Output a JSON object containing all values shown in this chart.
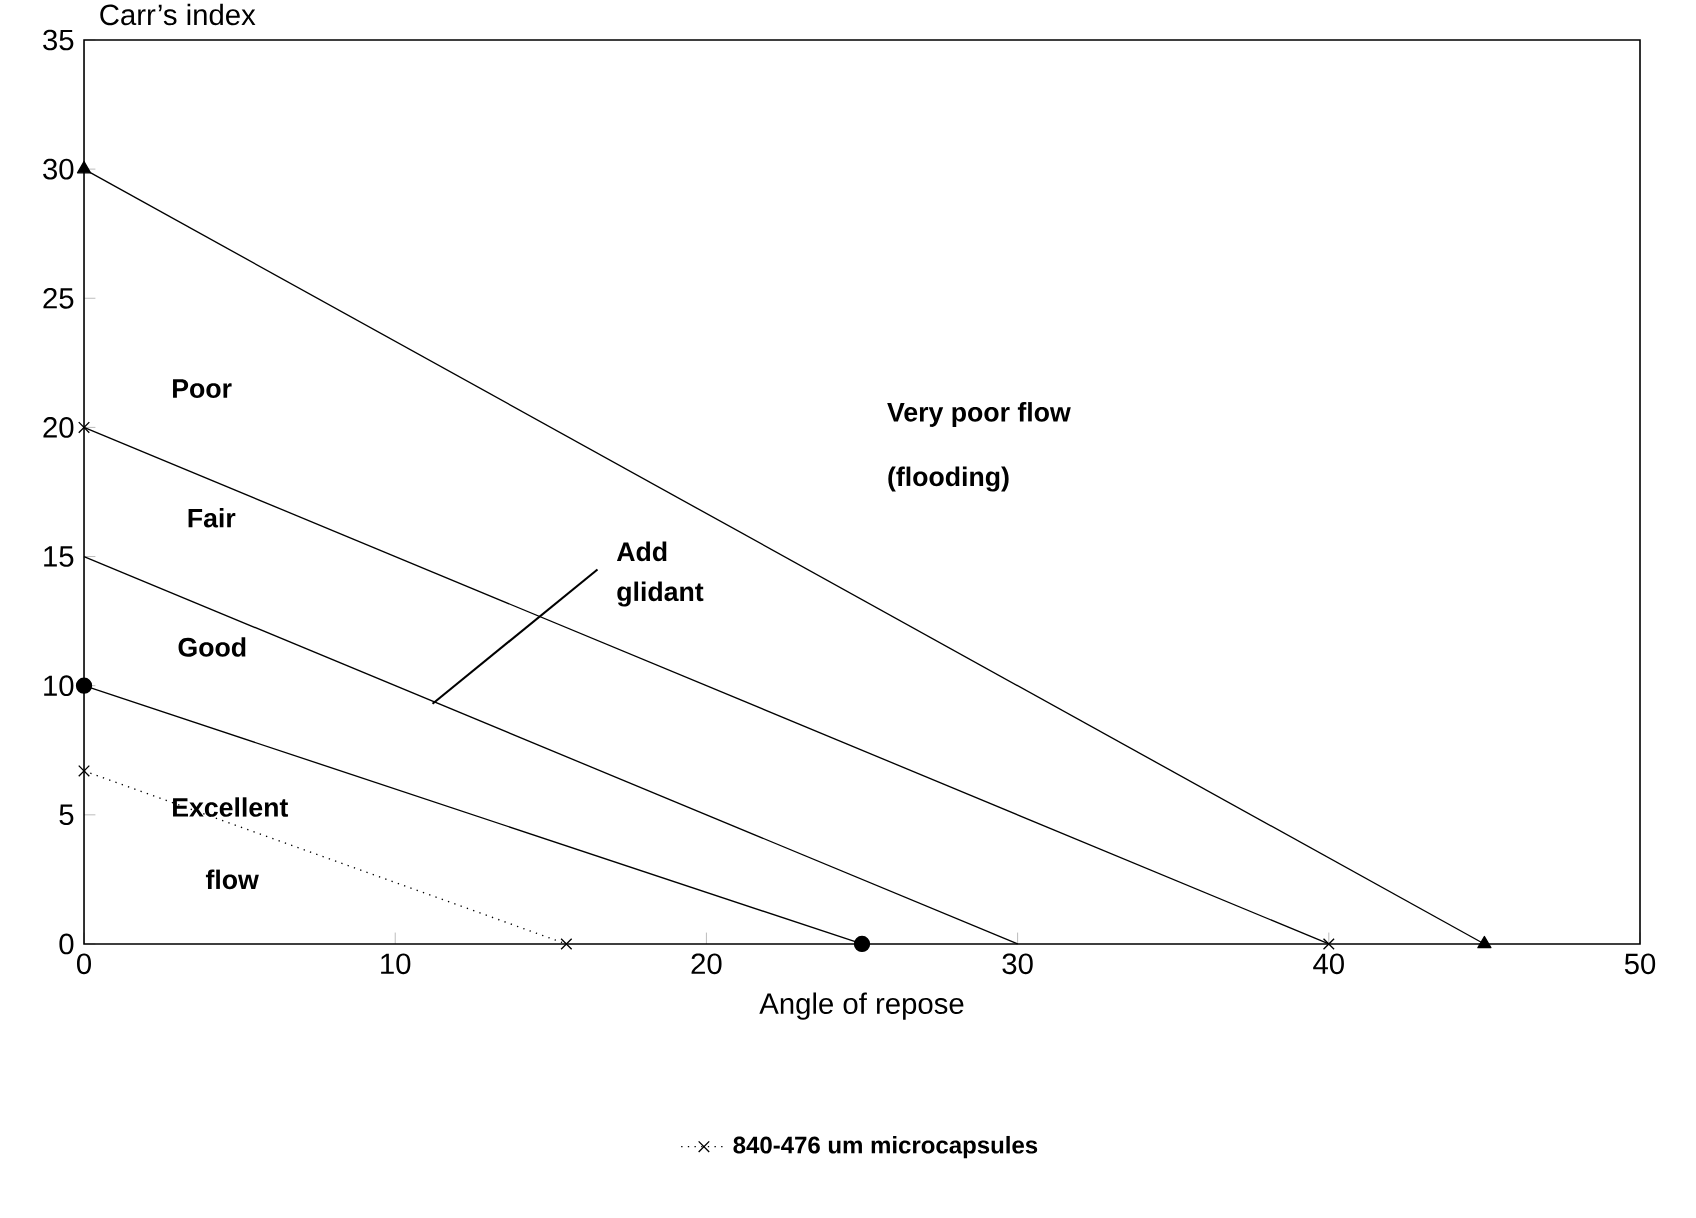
{
  "chart_data": {
    "type": "line",
    "xlabel": "Angle of repose",
    "ylabel": "Carr’s index",
    "xlim": [
      0,
      50
    ],
    "ylim": [
      0,
      35
    ],
    "xticks": [
      0,
      10,
      20,
      30,
      40,
      50
    ],
    "yticks": [
      0,
      5,
      10,
      15,
      20,
      25,
      30,
      35
    ],
    "grid": false,
    "legend": "bottom",
    "series": [
      {
        "x": [
          0,
          45
        ],
        "values": [
          30,
          0
        ],
        "color": "#000000",
        "marker": "triangle",
        "line_style": "solid"
      },
      {
        "x": [
          0,
          40
        ],
        "values": [
          20,
          0
        ],
        "color": "#000000",
        "marker": "cross",
        "line_style": "solid"
      },
      {
        "x": [
          0,
          30
        ],
        "values": [
          15,
          0
        ],
        "color": "#000000",
        "marker": "none",
        "line_style": "solid"
      },
      {
        "x": [
          0,
          25
        ],
        "values": [
          10,
          0
        ],
        "color": "#000000",
        "marker": "circle",
        "line_style": "solid"
      },
      {
        "name": "840-476 um microcapsules",
        "x": [
          0,
          15.5
        ],
        "values": [
          6.7,
          0
        ],
        "color": "#000000",
        "marker": "cross",
        "line_style": "dotted"
      }
    ],
    "annotations": [
      "Poor",
      "Fair",
      "Good",
      "Excellent",
      "flow",
      "Very poor flow",
      "(flooding)",
      {
        "text": "Add glidant",
        "x": 11.2,
        "y": 9.3
      }
    ]
  }
}
